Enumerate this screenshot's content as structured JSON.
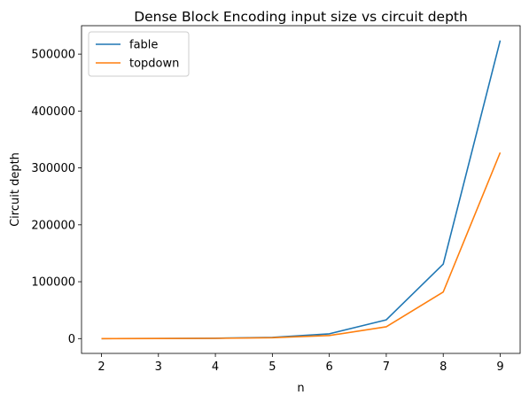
{
  "chart_data": {
    "type": "line",
    "title": "Dense Block Encoding input size vs circuit depth",
    "xlabel": "n",
    "ylabel": "Circuit depth",
    "x": [
      2,
      3,
      4,
      5,
      6,
      7,
      8,
      9
    ],
    "xlim": [
      1.65,
      9.35
    ],
    "ylim": [
      -26000,
      550000
    ],
    "xticks": [
      2,
      3,
      4,
      5,
      6,
      7,
      8,
      9
    ],
    "yticks": [
      0,
      100000,
      200000,
      300000,
      400000,
      500000
    ],
    "grid": false,
    "legend_position": "top-left",
    "series": [
      {
        "name": "fable",
        "color": "#1f77b4",
        "values": [
          40,
          150,
          600,
          2200,
          8400,
          33000,
          131000,
          524000
        ]
      },
      {
        "name": "topdown",
        "color": "#ff7f0e",
        "values": [
          30,
          120,
          450,
          1600,
          5400,
          20800,
          82000,
          327000
        ]
      }
    ]
  }
}
